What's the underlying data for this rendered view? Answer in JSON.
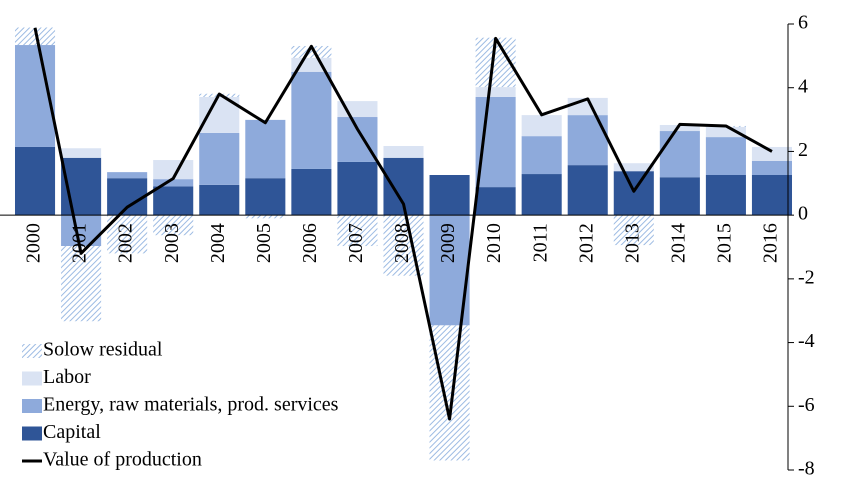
{
  "chart_data": {
    "type": "bar",
    "stacked": true,
    "categories": [
      "2000",
      "2001",
      "2002",
      "2003",
      "2004",
      "2005",
      "2006",
      "2007",
      "2008",
      "2009",
      "2010",
      "2011",
      "2012",
      "2013",
      "2014",
      "2015",
      "2016"
    ],
    "series": [
      {
        "name": "Solow residual",
        "color": "#9dbbe3",
        "pattern": "hatch",
        "values": [
          0.55,
          -2.36,
          -1.2,
          -0.63,
          0.1,
          -0.1,
          0.37,
          -0.97,
          -1.9,
          -4.24,
          1.55,
          0,
          0,
          -0.94,
          0,
          0.03,
          0
        ]
      },
      {
        "name": "Labor",
        "color": "#dae3f3",
        "values": [
          0,
          0.3,
          0,
          0.6,
          1.13,
          0,
          0.44,
          0.5,
          0.37,
          0,
          0.31,
          0.66,
          0.54,
          0.25,
          0.19,
          0.32,
          0.44
        ]
      },
      {
        "name": "Energy, raw materials, prod. services",
        "color": "#8eaadb",
        "values": [
          3.2,
          -0.97,
          0.19,
          0.23,
          1.63,
          1.83,
          3.05,
          1.41,
          0,
          -3.46,
          2.83,
          1.19,
          1.57,
          0,
          1.45,
          1.19,
          0.44
        ]
      },
      {
        "name": "Capital",
        "color": "#2f5597",
        "values": [
          2.14,
          1.8,
          1.16,
          0.9,
          0.95,
          1.16,
          1.45,
          1.67,
          1.8,
          1.26,
          0.88,
          1.29,
          1.57,
          1.38,
          1.19,
          1.26,
          1.26
        ]
      },
      {
        "name": "Value of production",
        "color": "#000000",
        "type": "line",
        "values": [
          5.88,
          -1.2,
          0.25,
          1.15,
          3.8,
          2.9,
          5.3,
          2.7,
          0.35,
          -6.4,
          5.55,
          3.15,
          3.65,
          0.75,
          2.85,
          2.8,
          2.0
        ]
      }
    ],
    "ylim": [
      -8,
      6
    ],
    "yticks": [
      -8,
      -6,
      -4,
      -2,
      0,
      2,
      4,
      6
    ],
    "y_axis_side": "right"
  }
}
